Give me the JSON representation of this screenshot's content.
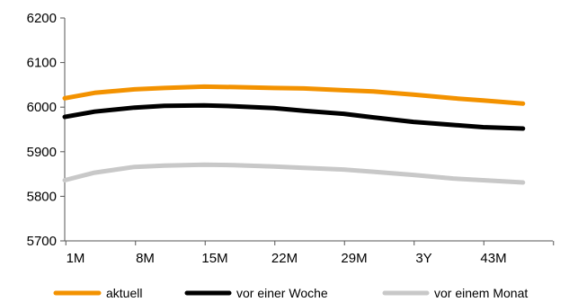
{
  "chart_data": {
    "type": "line",
    "x_ticks": [
      "1M",
      "8M",
      "15M",
      "22M",
      "29M",
      "3Y",
      "43M"
    ],
    "ylim": [
      5700,
      6200
    ],
    "y_ticks": [
      5700,
      5800,
      5900,
      6000,
      6100,
      6200
    ],
    "grid": false,
    "legend_position": "bottom",
    "series": [
      {
        "name": "aktuell",
        "color": "#f39200",
        "x": [
          1,
          4,
          8,
          11,
          15,
          18,
          22,
          25,
          29,
          32,
          36,
          40,
          43,
          47
        ],
        "values": [
          6020,
          6032,
          6040,
          6043,
          6046,
          6045,
          6043,
          6042,
          6038,
          6035,
          6028,
          6020,
          6015,
          6008
        ]
      },
      {
        "name": "vor einer Woche",
        "color": "#000000",
        "x": [
          1,
          4,
          8,
          11,
          15,
          18,
          22,
          25,
          29,
          32,
          36,
          40,
          43,
          47
        ],
        "values": [
          5978,
          5990,
          5999,
          6003,
          6004,
          6002,
          5998,
          5992,
          5985,
          5977,
          5967,
          5960,
          5955,
          5952
        ]
      },
      {
        "name": "vor einem Monat",
        "color": "#c8c8c8",
        "x": [
          1,
          4,
          8,
          11,
          15,
          18,
          22,
          25,
          29,
          32,
          36,
          40,
          43,
          47
        ],
        "values": [
          5836,
          5853,
          5866,
          5869,
          5871,
          5870,
          5867,
          5864,
          5860,
          5855,
          5848,
          5840,
          5836,
          5831
        ]
      }
    ]
  }
}
